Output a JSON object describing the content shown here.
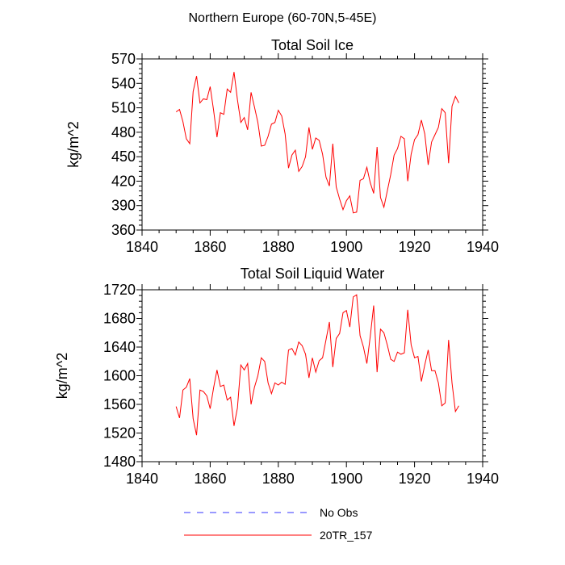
{
  "figure": {
    "title": "Northern Europe (60-70N,5-45E)"
  },
  "chart_data": [
    {
      "type": "line",
      "title": "Total Soil Ice",
      "xlabel": "",
      "ylabel": "kg/m^2",
      "xlim": [
        1840,
        1940
      ],
      "ylim": [
        360,
        570
      ],
      "xticks": [
        1840,
        1860,
        1880,
        1900,
        1920,
        1940
      ],
      "yticks": [
        360,
        390,
        420,
        450,
        480,
        510,
        540,
        570
      ],
      "series": [
        {
          "name": "20TR_157",
          "color": "#ff0000",
          "x": [
            1850,
            1851,
            1852,
            1853,
            1854,
            1855,
            1856,
            1857,
            1858,
            1859,
            1860,
            1861,
            1862,
            1863,
            1864,
            1865,
            1866,
            1867,
            1868,
            1869,
            1870,
            1871,
            1872,
            1873,
            1874,
            1875,
            1876,
            1877,
            1878,
            1879,
            1880,
            1881,
            1882,
            1883,
            1884,
            1885,
            1886,
            1887,
            1888,
            1889,
            1890,
            1891,
            1892,
            1893,
            1894,
            1895,
            1896,
            1897,
            1898,
            1899,
            1900,
            1901,
            1902,
            1903,
            1904,
            1905,
            1906,
            1907,
            1908,
            1909,
            1910,
            1911,
            1912,
            1913,
            1914,
            1915,
            1916,
            1917,
            1918,
            1919,
            1920,
            1921,
            1922,
            1923,
            1924,
            1925,
            1926,
            1927,
            1928,
            1929,
            1930,
            1931,
            1932,
            1933
          ],
          "values": [
            505,
            508,
            493,
            472,
            466,
            530,
            549,
            516,
            521,
            520,
            536,
            507,
            474,
            504,
            502,
            533,
            529,
            554,
            520,
            492,
            498,
            483,
            529,
            511,
            492,
            463,
            464,
            475,
            490,
            492,
            507,
            500,
            478,
            436,
            452,
            458,
            432,
            438,
            450,
            486,
            459,
            473,
            470,
            453,
            425,
            414,
            466,
            413,
            398,
            385,
            396,
            402,
            381,
            382,
            421,
            423,
            437,
            418,
            405,
            462,
            400,
            388,
            408,
            428,
            452,
            460,
            475,
            472,
            420,
            453,
            471,
            477,
            495,
            478,
            440,
            468,
            477,
            486,
            509,
            504,
            442,
            512,
            524,
            516
          ]
        },
        {
          "name": "No Obs",
          "color": "#0000ff",
          "x": [],
          "values": []
        }
      ]
    },
    {
      "type": "line",
      "title": "Total Soil Liquid Water",
      "xlabel": "",
      "ylabel": "kg/m^2",
      "xlim": [
        1840,
        1940
      ],
      "ylim": [
        1480,
        1720
      ],
      "xticks": [
        1840,
        1860,
        1880,
        1900,
        1920,
        1940
      ],
      "yticks": [
        1480,
        1520,
        1560,
        1600,
        1640,
        1680,
        1720
      ],
      "series": [
        {
          "name": "20TR_157",
          "color": "#ff0000",
          "x": [
            1850,
            1851,
            1852,
            1853,
            1854,
            1855,
            1856,
            1857,
            1858,
            1859,
            1860,
            1861,
            1862,
            1863,
            1864,
            1865,
            1866,
            1867,
            1868,
            1869,
            1870,
            1871,
            1872,
            1873,
            1874,
            1875,
            1876,
            1877,
            1878,
            1879,
            1880,
            1881,
            1882,
            1883,
            1884,
            1885,
            1886,
            1887,
            1888,
            1889,
            1890,
            1891,
            1892,
            1893,
            1894,
            1895,
            1896,
            1897,
            1898,
            1899,
            1900,
            1901,
            1902,
            1903,
            1904,
            1905,
            1906,
            1907,
            1908,
            1909,
            1910,
            1911,
            1912,
            1913,
            1914,
            1915,
            1916,
            1917,
            1918,
            1919,
            1920,
            1921,
            1922,
            1923,
            1924,
            1925,
            1926,
            1927,
            1928,
            1929,
            1930,
            1931,
            1932,
            1933
          ],
          "values": [
            1557,
            1541,
            1580,
            1584,
            1596,
            1540,
            1517,
            1580,
            1578,
            1572,
            1554,
            1583,
            1608,
            1585,
            1587,
            1566,
            1570,
            1530,
            1555,
            1615,
            1608,
            1617,
            1560,
            1584,
            1600,
            1625,
            1620,
            1590,
            1575,
            1590,
            1587,
            1591,
            1588,
            1636,
            1638,
            1629,
            1647,
            1642,
            1630,
            1597,
            1625,
            1605,
            1621,
            1625,
            1650,
            1675,
            1612,
            1652,
            1659,
            1688,
            1691,
            1668,
            1710,
            1713,
            1656,
            1640,
            1617,
            1655,
            1698,
            1605,
            1665,
            1660,
            1643,
            1623,
            1620,
            1633,
            1630,
            1632,
            1692,
            1643,
            1625,
            1627,
            1592,
            1615,
            1636,
            1607,
            1607,
            1590,
            1558,
            1562,
            1650,
            1590,
            1550,
            1558
          ]
        },
        {
          "name": "No Obs",
          "color": "#0000ff",
          "x": [],
          "values": []
        }
      ]
    }
  ],
  "legend": {
    "placement": "bottom-center",
    "items": [
      {
        "label": "No Obs",
        "color": "#0000ff",
        "style": "dashed"
      },
      {
        "label": "20TR_157",
        "color": "#ff0000",
        "style": "solid"
      }
    ]
  }
}
